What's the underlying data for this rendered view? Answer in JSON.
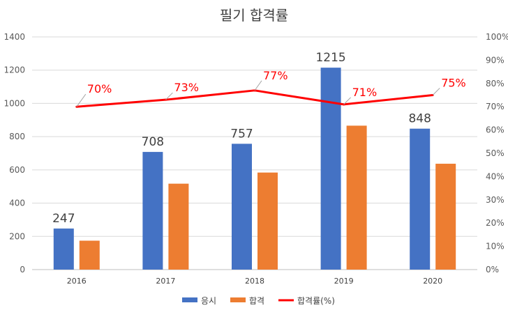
{
  "chart_data": {
    "type": "bar",
    "title": "필기 합격률",
    "categories": [
      "2016",
      "2017",
      "2018",
      "2019",
      "2020"
    ],
    "series": [
      {
        "name": "응시",
        "type": "bar",
        "values": [
          247,
          708,
          757,
          1215,
          848
        ],
        "color": "#4472c4",
        "data_labels": [
          "247",
          "708",
          "757",
          "1215",
          "848"
        ]
      },
      {
        "name": "합격",
        "type": "bar",
        "values": [
          174,
          517,
          584,
          866,
          637
        ],
        "color": "#ed7d31"
      },
      {
        "name": "합격률(%)",
        "type": "line",
        "axis": "secondary",
        "values": [
          70,
          73,
          77,
          71,
          75
        ],
        "color": "#ff0000",
        "data_labels": [
          "70%",
          "73%",
          "77%",
          "71%",
          "75%"
        ]
      }
    ],
    "y_axis": {
      "min": 0,
      "max": 1400,
      "ticks": [
        "0",
        "200",
        "400",
        "600",
        "800",
        "1000",
        "1200",
        "1400"
      ]
    },
    "y2_axis": {
      "min": 0,
      "max": 100,
      "ticks": [
        "0%",
        "10%",
        "20%",
        "30%",
        "40%",
        "50%",
        "60%",
        "70%",
        "80%",
        "90%",
        "100%"
      ]
    },
    "grid": true,
    "legend_position": "bottom"
  }
}
